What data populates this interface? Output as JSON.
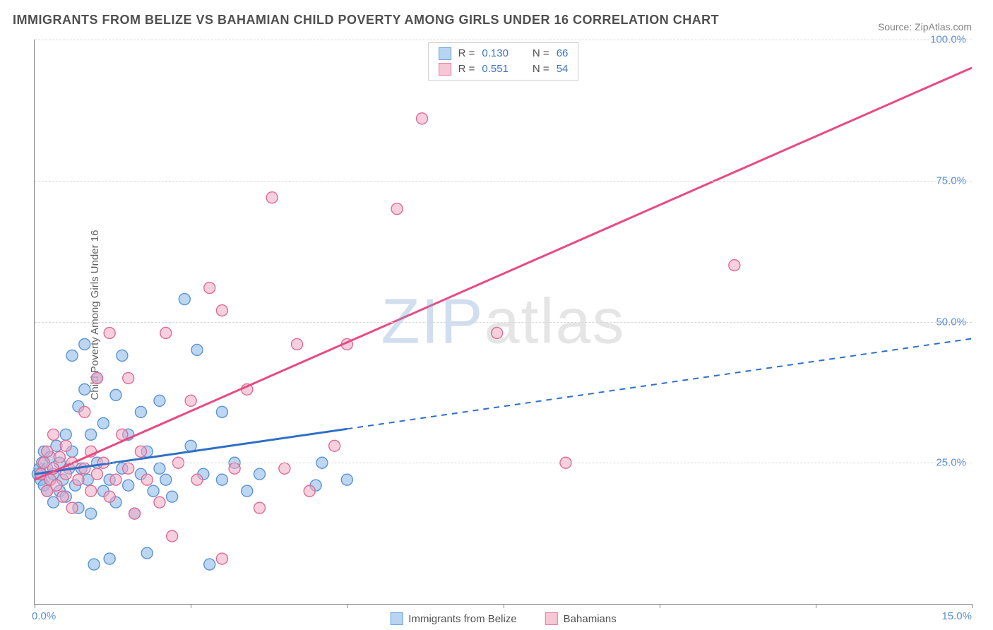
{
  "title": "IMMIGRANTS FROM BELIZE VS BAHAMIAN CHILD POVERTY AMONG GIRLS UNDER 16 CORRELATION CHART",
  "source_label": "Source:",
  "source_name": "ZipAtlas.com",
  "ylabel": "Child Poverty Among Girls Under 16",
  "watermark_a": "ZIP",
  "watermark_b": "atlas",
  "chart": {
    "type": "scatter",
    "background_color": "#ffffff",
    "grid_color": "#d8d8d8",
    "axis_color": "#808080",
    "xlim": [
      0,
      15
    ],
    "ylim": [
      0,
      100
    ],
    "x_ticks": [
      0,
      2.5,
      5.0,
      7.5,
      10.0,
      12.5,
      15.0
    ],
    "x_tick_labels_shown": {
      "0": "0.0%",
      "15": "15.0%"
    },
    "y_ticks": [
      25,
      50,
      75,
      100
    ],
    "y_tick_labels": [
      "25.0%",
      "50.0%",
      "75.0%",
      "100.0%"
    ],
    "label_fontsize": 15,
    "tick_color": "#5a8fd6",
    "marker_radius": 8,
    "marker_stroke_width": 1.4,
    "trend_line_width": 3
  },
  "legend_top": {
    "r_label": "R =",
    "n_label": "N =",
    "rows": [
      {
        "swatch_fill": "#b7d4f0",
        "swatch_stroke": "#6fa7e0",
        "r": "0.130",
        "n": "66"
      },
      {
        "swatch_fill": "#f6c7d5",
        "swatch_stroke": "#e87ba1",
        "r": "0.551",
        "n": "54"
      }
    ]
  },
  "legend_bottom": [
    {
      "swatch_fill": "#b7d4f0",
      "swatch_stroke": "#6fa7e0",
      "label": "Immigrants from Belize"
    },
    {
      "swatch_fill": "#f6c7d5",
      "swatch_stroke": "#e87ba1",
      "label": "Bahamians"
    }
  ],
  "series": [
    {
      "name": "belize",
      "fill": "rgba(135,180,230,0.55)",
      "stroke": "#5a94d6",
      "trend_stroke": "#2e6fc7",
      "trend_solid_until_x": 5.0,
      "trend": {
        "x1": 0.0,
        "y1": 23.0,
        "x2": 15.0,
        "y2": 47.0
      },
      "points": [
        [
          0.05,
          23
        ],
        [
          0.08,
          24
        ],
        [
          0.1,
          22
        ],
        [
          0.12,
          25
        ],
        [
          0.15,
          21
        ],
        [
          0.15,
          27
        ],
        [
          0.2,
          20
        ],
        [
          0.2,
          24
        ],
        [
          0.25,
          22
        ],
        [
          0.25,
          26
        ],
        [
          0.3,
          18
        ],
        [
          0.3,
          23
        ],
        [
          0.35,
          28
        ],
        [
          0.4,
          20
        ],
        [
          0.4,
          25
        ],
        [
          0.45,
          22
        ],
        [
          0.5,
          30
        ],
        [
          0.5,
          19
        ],
        [
          0.55,
          24
        ],
        [
          0.6,
          27
        ],
        [
          0.6,
          44
        ],
        [
          0.65,
          21
        ],
        [
          0.7,
          35
        ],
        [
          0.7,
          17
        ],
        [
          0.75,
          24
        ],
        [
          0.8,
          38
        ],
        [
          0.8,
          46
        ],
        [
          0.85,
          22
        ],
        [
          0.9,
          30
        ],
        [
          0.9,
          16
        ],
        [
          0.95,
          7
        ],
        [
          1.0,
          25
        ],
        [
          1.0,
          40
        ],
        [
          1.1,
          20
        ],
        [
          1.1,
          32
        ],
        [
          1.2,
          22
        ],
        [
          1.2,
          8
        ],
        [
          1.3,
          37
        ],
        [
          1.3,
          18
        ],
        [
          1.4,
          24
        ],
        [
          1.4,
          44
        ],
        [
          1.5,
          21
        ],
        [
          1.5,
          30
        ],
        [
          1.6,
          16
        ],
        [
          1.7,
          34
        ],
        [
          1.7,
          23
        ],
        [
          1.8,
          9
        ],
        [
          1.8,
          27
        ],
        [
          1.9,
          20
        ],
        [
          2.0,
          24
        ],
        [
          2.0,
          36
        ],
        [
          2.1,
          22
        ],
        [
          2.2,
          19
        ],
        [
          2.4,
          54
        ],
        [
          2.5,
          28
        ],
        [
          2.6,
          45
        ],
        [
          2.7,
          23
        ],
        [
          2.8,
          7
        ],
        [
          3.0,
          22
        ],
        [
          3.0,
          34
        ],
        [
          3.2,
          25
        ],
        [
          3.4,
          20
        ],
        [
          3.6,
          23
        ],
        [
          4.5,
          21
        ],
        [
          4.6,
          25
        ],
        [
          5.0,
          22
        ]
      ]
    },
    {
      "name": "bahamians",
      "fill": "rgba(240,170,195,0.55)",
      "stroke": "#e26a94",
      "trend_stroke": "#e84a84",
      "trend_solid_until_x": 15.0,
      "trend": {
        "x1": 0.0,
        "y1": 22.0,
        "x2": 15.0,
        "y2": 95.0
      },
      "points": [
        [
          0.1,
          23
        ],
        [
          0.15,
          25
        ],
        [
          0.2,
          20
        ],
        [
          0.2,
          27
        ],
        [
          0.25,
          22
        ],
        [
          0.3,
          24
        ],
        [
          0.3,
          30
        ],
        [
          0.35,
          21
        ],
        [
          0.4,
          26
        ],
        [
          0.45,
          19
        ],
        [
          0.5,
          23
        ],
        [
          0.5,
          28
        ],
        [
          0.6,
          25
        ],
        [
          0.6,
          17
        ],
        [
          0.7,
          22
        ],
        [
          0.8,
          24
        ],
        [
          0.8,
          34
        ],
        [
          0.9,
          20
        ],
        [
          0.9,
          27
        ],
        [
          1.0,
          23
        ],
        [
          1.0,
          40
        ],
        [
          1.1,
          25
        ],
        [
          1.2,
          19
        ],
        [
          1.2,
          48
        ],
        [
          1.3,
          22
        ],
        [
          1.4,
          30
        ],
        [
          1.5,
          24
        ],
        [
          1.5,
          40
        ],
        [
          1.6,
          16
        ],
        [
          1.7,
          27
        ],
        [
          1.8,
          22
        ],
        [
          2.0,
          18
        ],
        [
          2.1,
          48
        ],
        [
          2.2,
          12
        ],
        [
          2.3,
          25
        ],
        [
          2.5,
          36
        ],
        [
          2.6,
          22
        ],
        [
          2.8,
          56
        ],
        [
          3.0,
          8
        ],
        [
          3.0,
          52
        ],
        [
          3.2,
          24
        ],
        [
          3.4,
          38
        ],
        [
          3.6,
          17
        ],
        [
          3.8,
          72
        ],
        [
          4.0,
          24
        ],
        [
          4.2,
          46
        ],
        [
          4.4,
          20
        ],
        [
          4.8,
          28
        ],
        [
          5.0,
          46
        ],
        [
          5.8,
          70
        ],
        [
          6.2,
          86
        ],
        [
          7.4,
          48
        ],
        [
          8.5,
          25
        ],
        [
          11.2,
          60
        ]
      ]
    }
  ]
}
